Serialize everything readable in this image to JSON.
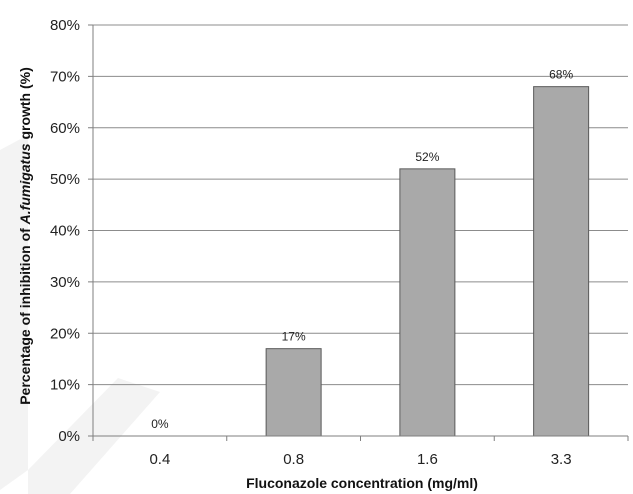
{
  "chart_data": {
    "type": "bar",
    "categories": [
      "0.4",
      "0.8",
      "1.6",
      "3.3"
    ],
    "values": [
      0,
      17,
      52,
      68
    ],
    "data_labels": [
      "0%",
      "17%",
      "52%",
      "68%"
    ],
    "title": "",
    "xlabel": "Fluconazole concentration (mg/ml)",
    "ylabel_parts": [
      "Percentage of inhibition of ",
      "A.fumigatus",
      " growth (%)"
    ],
    "ylim": [
      0,
      80
    ],
    "yticks": [
      0,
      10,
      20,
      30,
      40,
      50,
      60,
      70,
      80
    ],
    "ytick_labels": [
      "0%",
      "10%",
      "20%",
      "30%",
      "40%",
      "50%",
      "60%",
      "70%",
      "80%"
    ],
    "grid": true,
    "bar_color": "#a9a9a9",
    "bar_edge_color": "#5a5a5a"
  }
}
